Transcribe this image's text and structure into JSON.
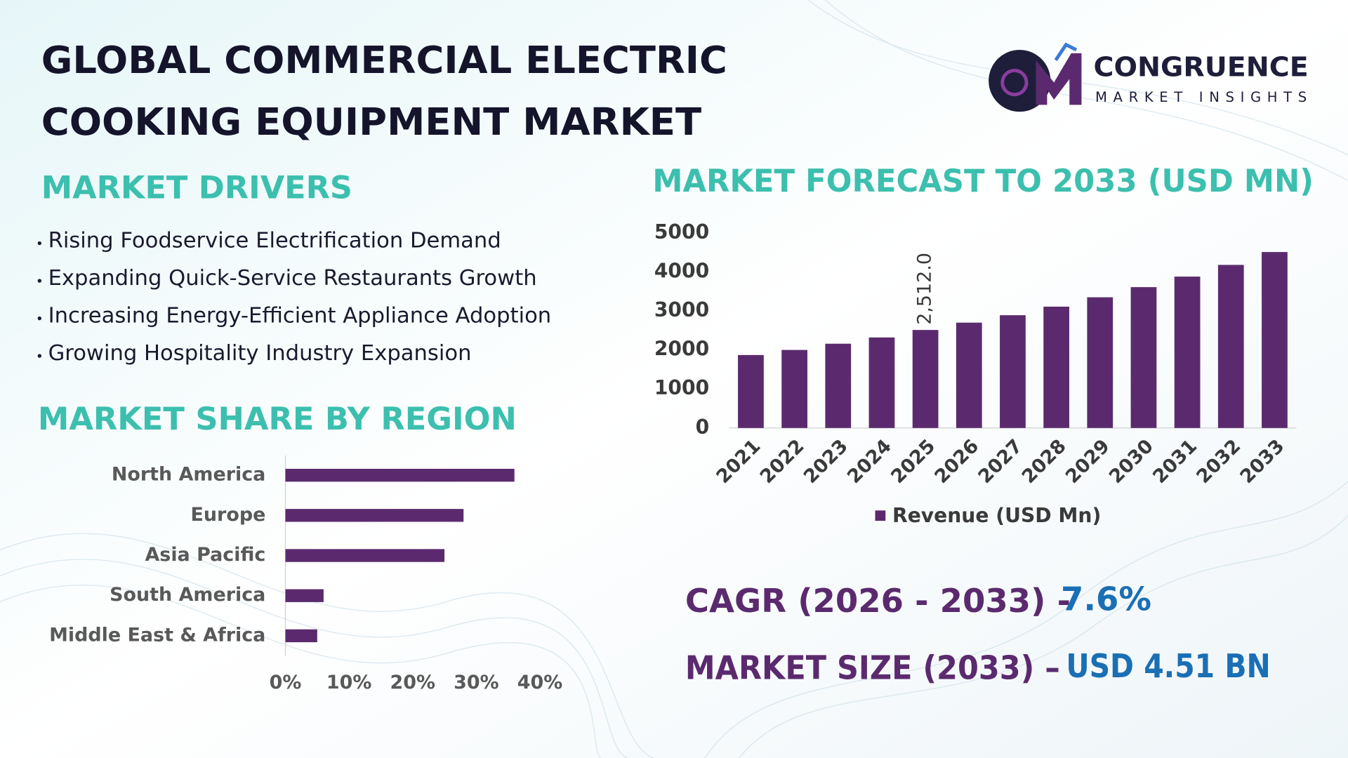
{
  "header": {
    "title_lines": [
      "GLOBAL COMMERCIAL ELECTRIC",
      "COOKING EQUIPMENT MARKET"
    ]
  },
  "logo": {
    "name": "CONGRUENCE",
    "tagline": "MARKET INSIGHTS"
  },
  "drivers": {
    "title": "MARKET DRIVERS",
    "items": [
      "Rising Foodservice Electrification Demand",
      "Expanding Quick-Service Restaurants Growth",
      "Increasing Energy-Efficient Appliance Adoption",
      "Growing Hospitality Industry Expansion"
    ]
  },
  "chart_data": [
    {
      "type": "hbar",
      "title": "MARKET SHARE BY REGION",
      "categories": [
        "North America",
        "Europe",
        "Asia Pacific",
        "South America",
        "Middle East & Africa"
      ],
      "values": [
        36,
        28,
        25,
        6,
        5
      ],
      "color": "#5b2a6e",
      "xlim": [
        0,
        40
      ],
      "xticks": [
        {
          "value": 0,
          "label": "0%"
        },
        {
          "value": 10,
          "label": "10%"
        },
        {
          "value": 20,
          "label": "20%"
        },
        {
          "value": 30,
          "label": "30%"
        },
        {
          "value": 40,
          "label": "40%"
        }
      ]
    },
    {
      "type": "bar",
      "title": "MARKET FORECAST TO 2033 (USD MN)",
      "categories": [
        "2021",
        "2022",
        "2023",
        "2024",
        "2025",
        "2026",
        "2027",
        "2028",
        "2029",
        "2030",
        "2031",
        "2032",
        "2033"
      ],
      "series": [
        {
          "name": "Revenue (USD Mn)",
          "color": "#5b2a6e",
          "values": [
            1870,
            2000,
            2160,
            2320,
            2512,
            2700,
            2890,
            3110,
            3350,
            3610,
            3880,
            4180,
            4510
          ],
          "value_labels": [
            null,
            null,
            null,
            null,
            "2,512.0",
            null,
            null,
            null,
            null,
            null,
            null,
            null,
            null
          ]
        }
      ],
      "ylim": [
        0,
        5000
      ],
      "yticks": [
        0,
        1000,
        2000,
        3000,
        4000,
        5000
      ],
      "legend": "bottom"
    }
  ],
  "summary": {
    "cagr_label": "CAGR (2026 - 2033) -",
    "cagr_value": "7.6%",
    "size_label": "MARKET SIZE (2033) –",
    "size_value": "USD 4.51 BN"
  }
}
